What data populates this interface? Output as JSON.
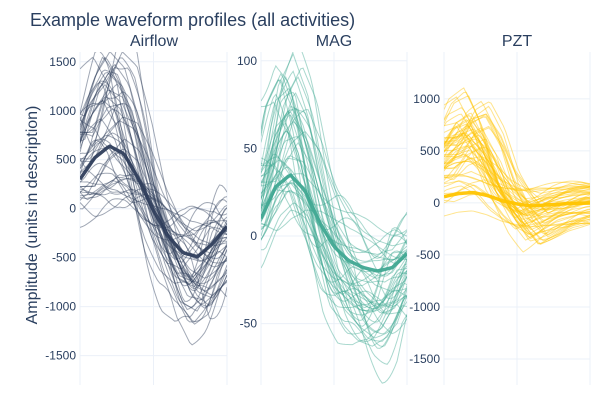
{
  "chart_data": {
    "type": "line",
    "title": "Example waveform profiles (all activities)",
    "ylabel": "Amplitude (units in description)",
    "xlabel": "",
    "grid": true,
    "legend": "none",
    "panels": [
      {
        "name": "Airflow",
        "color": "#2f3e5c",
        "ylim": [
          -1800,
          1600
        ],
        "yticks": [
          1500,
          1000,
          500,
          0,
          -500,
          -1000,
          -1500
        ],
        "mean": [
          300,
          520,
          640,
          560,
          300,
          -20,
          -280,
          -450,
          -490,
          -360,
          -180
        ],
        "thin_count": 50,
        "thin_amp_range": [
          0.35,
          2.4
        ],
        "thin_offset_range": [
          -300,
          300
        ]
      },
      {
        "name": "MAG",
        "color": "#40a892",
        "ylim": [
          -85,
          105
        ],
        "yticks": [
          100,
          50,
          0,
          -50
        ],
        "mean": [
          10,
          28,
          35,
          26,
          8,
          -6,
          -14,
          -18,
          -20,
          -18,
          -10
        ],
        "thin_count": 50,
        "thin_amp_range": [
          0.5,
          2.8
        ],
        "thin_offset_range": [
          -20,
          20
        ]
      },
      {
        "name": "PZT",
        "color": "#ffc400",
        "ylim": [
          -1750,
          1450
        ],
        "yticks": [
          1000,
          500,
          0,
          -500,
          -1000,
          -1500
        ],
        "mean": [
          60,
          90,
          100,
          70,
          20,
          -10,
          -30,
          -20,
          -10,
          -5,
          0
        ],
        "thin_count": 60,
        "thin_amp_range": [
          1.0,
          10
        ],
        "thin_offset_range": [
          -200,
          200
        ]
      }
    ]
  }
}
